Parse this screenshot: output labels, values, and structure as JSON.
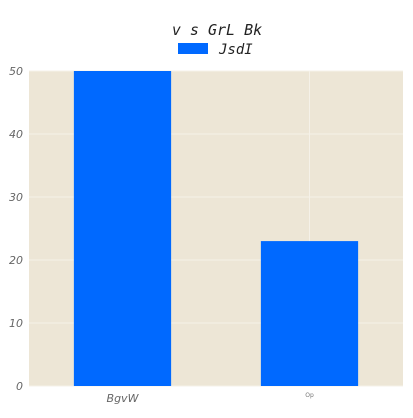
{
  "chart_data": {
    "type": "bar",
    "title": "v s GrL Bk",
    "xlabel": "",
    "ylabel": "",
    "categories": [
      "BgvW",
      "Op"
    ],
    "series": [
      {
        "name": "JsdI",
        "values": [
          50,
          23
        ],
        "color": "#0069ff"
      }
    ],
    "ylim": [
      0,
      50
    ],
    "yticks": [
      0,
      10,
      20,
      30,
      40,
      50
    ],
    "grid": true,
    "legend": "top-center",
    "background_color": "#ede6d6",
    "grid_color": "#f5f1e8"
  }
}
